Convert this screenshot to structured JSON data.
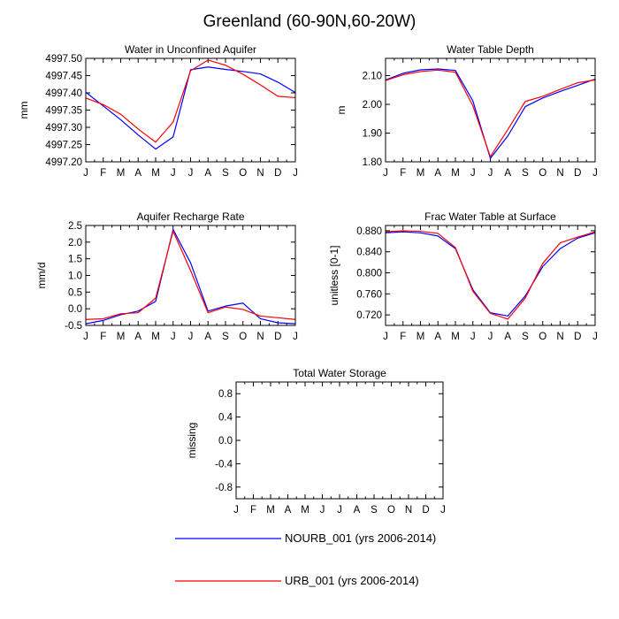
{
  "figure": {
    "title": "Greenland (60-90N,60-20W)",
    "months": [
      "J",
      "F",
      "M",
      "A",
      "M",
      "J",
      "J",
      "A",
      "S",
      "O",
      "N",
      "D",
      "J"
    ]
  },
  "legend": [
    {
      "label": "NOURB_001 (yrs 2006-2014)",
      "color": "#0000ff"
    },
    {
      "label": "URB_001 (yrs 2006-2014)",
      "color": "#ff0000"
    }
  ],
  "chart_data": [
    {
      "type": "line",
      "title": "Water in Unconfined Aquifer",
      "ylabel": "mm",
      "ylim": [
        4997.2,
        4997.5
      ],
      "yticks": [
        4997.2,
        4997.25,
        4997.3,
        4997.35,
        4997.4,
        4997.45,
        4997.5
      ],
      "ytick_labels": [
        "4997.20",
        "4997.25",
        "4997.30",
        "4997.35",
        "4997.40",
        "4997.45",
        "4997.50"
      ],
      "x": [
        "J",
        "F",
        "M",
        "A",
        "M",
        "J",
        "J",
        "A",
        "S",
        "O",
        "N",
        "D",
        "J"
      ],
      "series": [
        {
          "name": "NOURB_001 (yrs 2006-2014)",
          "color": "#0000ff",
          "values": [
            4997.402,
            4997.362,
            4997.322,
            4997.278,
            4997.237,
            4997.272,
            4997.467,
            4997.475,
            4997.468,
            4997.462,
            4997.455,
            4997.431,
            4997.401
          ]
        },
        {
          "name": "URB_001 (yrs 2006-2014)",
          "color": "#ff0000",
          "values": [
            4997.385,
            4997.366,
            4997.338,
            4997.295,
            4997.257,
            4997.315,
            4997.464,
            4997.495,
            4997.48,
            4997.454,
            4997.423,
            4997.39,
            4997.386
          ]
        }
      ]
    },
    {
      "type": "line",
      "title": "Water Table Depth",
      "ylabel": "m",
      "ylim": [
        1.8,
        2.16
      ],
      "yticks": [
        1.8,
        1.9,
        2.0,
        2.1
      ],
      "ytick_labels": [
        "1.80",
        "1.90",
        "2.00",
        "2.10"
      ],
      "x": [
        "J",
        "F",
        "M",
        "A",
        "M",
        "J",
        "J",
        "A",
        "S",
        "O",
        "N",
        "D",
        "J"
      ],
      "series": [
        {
          "name": "NOURB_001 (yrs 2006-2014)",
          "color": "#0000ff",
          "values": [
            2.085,
            2.108,
            2.12,
            2.123,
            2.118,
            2.012,
            1.812,
            1.89,
            1.992,
            2.022,
            2.045,
            2.066,
            2.088
          ]
        },
        {
          "name": "URB_001 (yrs 2006-2014)",
          "color": "#ff0000",
          "values": [
            2.083,
            2.103,
            2.114,
            2.119,
            2.112,
            1.995,
            1.818,
            1.912,
            2.01,
            2.028,
            2.052,
            2.075,
            2.085
          ]
        }
      ]
    },
    {
      "type": "line",
      "title": "Aquifer Recharge Rate",
      "ylabel": "mm/d",
      "ylim": [
        -0.5,
        2.5
      ],
      "yticks": [
        -0.5,
        0.0,
        0.5,
        1.0,
        1.5,
        2.0,
        2.5
      ],
      "ytick_labels": [
        "-0.5",
        "0.0",
        "0.5",
        "1.0",
        "1.5",
        "2.0",
        "2.5"
      ],
      "x": [
        "J",
        "F",
        "M",
        "A",
        "M",
        "J",
        "J",
        "A",
        "S",
        "O",
        "N",
        "D",
        "J"
      ],
      "series": [
        {
          "name": "NOURB_001 (yrs 2006-2014)",
          "color": "#0000ff",
          "values": [
            -0.45,
            -0.35,
            -0.18,
            -0.07,
            0.22,
            2.38,
            1.38,
            -0.07,
            0.08,
            0.17,
            -0.3,
            -0.42,
            -0.45
          ]
        },
        {
          "name": "URB_001 (yrs 2006-2014)",
          "color": "#ff0000",
          "values": [
            -0.32,
            -0.3,
            -0.15,
            -0.12,
            0.32,
            2.33,
            1.15,
            -0.12,
            0.05,
            -0.02,
            -0.22,
            -0.27,
            -0.32
          ]
        }
      ]
    },
    {
      "type": "line",
      "title": "Frac Water Table at Surface",
      "ylabel": "unitless [0-1]",
      "ylim": [
        0.7,
        0.89
      ],
      "yticks": [
        0.72,
        0.76,
        0.8,
        0.84,
        0.88
      ],
      "ytick_labels": [
        "0.720",
        "0.760",
        "0.800",
        "0.840",
        "0.880"
      ],
      "x": [
        "J",
        "F",
        "M",
        "A",
        "M",
        "J",
        "J",
        "A",
        "S",
        "O",
        "N",
        "D",
        "J"
      ],
      "series": [
        {
          "name": "NOURB_001 (yrs 2006-2014)",
          "color": "#0000ff",
          "values": [
            0.876,
            0.878,
            0.876,
            0.87,
            0.846,
            0.768,
            0.724,
            0.718,
            0.756,
            0.812,
            0.846,
            0.866,
            0.876
          ]
        },
        {
          "name": "URB_001 (yrs 2006-2014)",
          "color": "#ff0000",
          "values": [
            0.878,
            0.88,
            0.879,
            0.875,
            0.848,
            0.765,
            0.723,
            0.712,
            0.752,
            0.818,
            0.857,
            0.868,
            0.878
          ]
        }
      ]
    },
    {
      "type": "line",
      "title": "Total Water Storage",
      "ylabel": "missing",
      "ylim": [
        -1.0,
        1.0
      ],
      "yticks": [
        -0.8,
        -0.4,
        0.0,
        0.4,
        0.8
      ],
      "ytick_labels": [
        "-0.8",
        "-0.4",
        "0.0",
        "0.4",
        "0.8"
      ],
      "x": [
        "J",
        "F",
        "M",
        "A",
        "M",
        "J",
        "J",
        "A",
        "S",
        "O",
        "N",
        "D",
        "J"
      ],
      "series": []
    }
  ]
}
